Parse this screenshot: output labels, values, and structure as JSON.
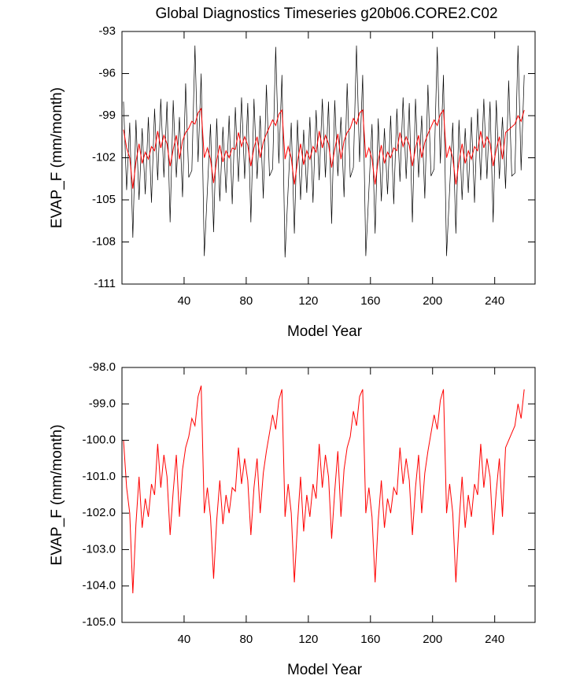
{
  "chart_data": [
    {
      "type": "line",
      "title": "Global Diagnostics Timeseries g20b06.CORE2.C02",
      "xlabel": "Model Year",
      "ylabel": "EVAP_F (mm/month)",
      "xlim": [
        0,
        266
      ],
      "xticks": [
        40,
        80,
        120,
        160,
        200,
        240
      ],
      "ylim": [
        -111,
        -93
      ],
      "yticks": [
        -111,
        -108,
        -105,
        -102,
        -99,
        -96,
        -93
      ],
      "x": [
        1,
        3,
        5,
        7,
        9,
        11,
        13,
        15,
        17,
        19,
        21,
        23,
        25,
        27,
        29,
        31,
        33,
        35,
        37,
        39,
        41,
        43,
        45,
        47,
        49,
        51,
        53,
        55,
        57,
        59,
        61,
        63,
        65,
        67,
        69,
        71,
        73,
        75,
        77,
        79,
        81,
        83,
        85,
        87,
        89,
        91,
        93,
        95,
        97,
        99,
        101,
        103,
        105,
        107,
        109,
        111,
        113,
        115,
        117,
        119,
        121,
        123,
        125,
        127,
        129,
        131,
        133,
        135,
        137,
        139,
        141,
        143,
        145,
        147,
        149,
        151,
        153,
        155,
        157,
        159,
        161,
        163,
        165,
        167,
        169,
        171,
        173,
        175,
        177,
        179,
        181,
        183,
        185,
        187,
        189,
        191,
        193,
        195,
        197,
        199,
        201,
        203,
        205,
        207,
        209,
        211,
        213,
        215,
        217,
        219,
        221,
        223,
        225,
        227,
        229,
        231,
        233,
        235,
        237,
        239,
        241,
        243,
        245,
        247,
        249,
        251,
        253,
        255,
        257,
        259
      ],
      "series": [
        {
          "color": "#000000",
          "values": [
            -98.0,
            -104.3,
            -99.5,
            -107.7,
            -99.3,
            -105.0,
            -99.9,
            -104.6,
            -99.1,
            -105.2,
            -98.5,
            -103.6,
            -97.8,
            -103.4,
            -98.0,
            -106.6,
            -97.9,
            -103.4,
            -99.1,
            -104.8,
            -96.7,
            -103.4,
            -102.9,
            -94.0,
            -102.3,
            -96.0,
            -109.0,
            -104.3,
            -99.6,
            -107.3,
            -99.2,
            -105.1,
            -99.8,
            -104.5,
            -99.0,
            -105.3,
            -98.4,
            -103.7,
            -97.7,
            -103.5,
            -98.1,
            -106.6,
            -97.8,
            -103.5,
            -99.0,
            -104.9,
            -96.8,
            -103.3,
            -102.8,
            -94.1,
            -102.4,
            -96.1,
            -109.1,
            -104.2,
            -99.5,
            -107.4,
            -99.3,
            -105.0,
            -100.0,
            -104.5,
            -99.1,
            -105.2,
            -98.6,
            -103.6,
            -97.8,
            -103.4,
            -98.0,
            -106.7,
            -97.9,
            -103.3,
            -99.1,
            -104.8,
            -96.7,
            -103.4,
            -102.7,
            -94.0,
            -102.3,
            -96.1,
            -109.0,
            -104.3,
            -99.6,
            -107.4,
            -99.2,
            -105.1,
            -99.9,
            -104.6,
            -99.0,
            -105.3,
            -98.5,
            -103.7,
            -97.7,
            -103.5,
            -98.1,
            -106.6,
            -97.8,
            -103.4,
            -99.0,
            -104.9,
            -96.8,
            -103.3,
            -102.8,
            -94.1,
            -102.4,
            -96.1,
            -109.0,
            -104.2,
            -99.5,
            -107.4,
            -99.3,
            -105.0,
            -99.9,
            -104.5,
            -99.1,
            -105.2,
            -98.5,
            -103.6,
            -97.8,
            -103.5,
            -98.0,
            -106.6,
            -97.9,
            -103.5,
            -99.1,
            -104.2,
            -96.5,
            -103.3,
            -103.1,
            -94.0,
            -102.9,
            -96.1
          ]
        },
        {
          "color": "#ff0000",
          "values": [
            -100.0,
            -101.3,
            -102.0,
            -104.2,
            -102.3,
            -101.0,
            -102.4,
            -101.6,
            -102.1,
            -101.2,
            -101.5,
            -100.1,
            -101.3,
            -100.4,
            -101.0,
            -102.6,
            -101.4,
            -100.4,
            -102.1,
            -100.8,
            -100.2,
            -99.9,
            -99.4,
            -99.6,
            -98.8,
            -98.5,
            -102.0,
            -101.3,
            -102.1,
            -103.8,
            -102.2,
            -101.1,
            -102.3,
            -101.5,
            -102.0,
            -101.3,
            -101.4,
            -100.2,
            -101.2,
            -100.5,
            -101.1,
            -102.6,
            -101.3,
            -100.5,
            -102.0,
            -100.9,
            -100.3,
            -99.8,
            -99.3,
            -99.7,
            -98.9,
            -98.6,
            -102.1,
            -101.2,
            -102.0,
            -103.9,
            -102.3,
            -101.0,
            -102.5,
            -101.5,
            -102.1,
            -101.2,
            -101.6,
            -100.1,
            -101.3,
            -100.4,
            -101.0,
            -102.7,
            -101.4,
            -100.3,
            -102.1,
            -100.8,
            -100.2,
            -99.9,
            -99.2,
            -99.6,
            -98.8,
            -98.6,
            -102.0,
            -101.3,
            -102.1,
            -103.9,
            -102.2,
            -101.1,
            -102.4,
            -101.6,
            -102.0,
            -101.3,
            -101.5,
            -100.2,
            -101.2,
            -100.5,
            -101.1,
            -102.6,
            -101.3,
            -100.4,
            -102.0,
            -100.9,
            -100.3,
            -99.8,
            -99.3,
            -99.7,
            -98.9,
            -98.6,
            -102.0,
            -101.2,
            -102.0,
            -103.9,
            -102.3,
            -101.0,
            -102.4,
            -101.5,
            -102.1,
            -101.2,
            -101.5,
            -100.1,
            -101.3,
            -100.5,
            -101.0,
            -102.6,
            -101.4,
            -100.5,
            -102.1,
            -100.2,
            -100.0,
            -99.8,
            -99.6,
            -99.0,
            -99.4,
            -98.6
          ]
        }
      ]
    },
    {
      "type": "line",
      "xlabel": "Model Year",
      "ylabel": "EVAP_F (mm/month)",
      "xlim": [
        0,
        266
      ],
      "xticks": [
        40,
        80,
        120,
        160,
        200,
        240
      ],
      "ylim": [
        -105,
        -98
      ],
      "yticks": [
        {
          "value": -105,
          "label": "-105.0"
        },
        {
          "value": -104,
          "label": "-104.0"
        },
        {
          "value": -103,
          "label": "-103.0"
        },
        {
          "value": -102,
          "label": "-102.0"
        },
        {
          "value": -101,
          "label": "-101.0"
        },
        {
          "value": -100,
          "label": "-100.0"
        },
        {
          "value": -99,
          "label": "-99.0"
        },
        {
          "value": -98,
          "label": "-98.0"
        }
      ],
      "x": [
        1,
        3,
        5,
        7,
        9,
        11,
        13,
        15,
        17,
        19,
        21,
        23,
        25,
        27,
        29,
        31,
        33,
        35,
        37,
        39,
        41,
        43,
        45,
        47,
        49,
        51,
        53,
        55,
        57,
        59,
        61,
        63,
        65,
        67,
        69,
        71,
        73,
        75,
        77,
        79,
        81,
        83,
        85,
        87,
        89,
        91,
        93,
        95,
        97,
        99,
        101,
        103,
        105,
        107,
        109,
        111,
        113,
        115,
        117,
        119,
        121,
        123,
        125,
        127,
        129,
        131,
        133,
        135,
        137,
        139,
        141,
        143,
        145,
        147,
        149,
        151,
        153,
        155,
        157,
        159,
        161,
        163,
        165,
        167,
        169,
        171,
        173,
        175,
        177,
        179,
        181,
        183,
        185,
        187,
        189,
        191,
        193,
        195,
        197,
        199,
        201,
        203,
        205,
        207,
        209,
        211,
        213,
        215,
        217,
        219,
        221,
        223,
        225,
        227,
        229,
        231,
        233,
        235,
        237,
        239,
        241,
        243,
        245,
        247,
        249,
        251,
        253,
        255,
        257,
        259
      ],
      "series": [
        {
          "color": "#ff0000",
          "values": [
            -100.0,
            -101.3,
            -102.0,
            -104.2,
            -102.3,
            -101.0,
            -102.4,
            -101.6,
            -102.1,
            -101.2,
            -101.5,
            -100.1,
            -101.3,
            -100.4,
            -101.0,
            -102.6,
            -101.4,
            -100.4,
            -102.1,
            -100.8,
            -100.2,
            -99.9,
            -99.4,
            -99.6,
            -98.8,
            -98.5,
            -102.0,
            -101.3,
            -102.1,
            -103.8,
            -102.2,
            -101.1,
            -102.3,
            -101.5,
            -102.0,
            -101.3,
            -101.4,
            -100.2,
            -101.2,
            -100.5,
            -101.1,
            -102.6,
            -101.3,
            -100.5,
            -102.0,
            -100.9,
            -100.3,
            -99.8,
            -99.3,
            -99.7,
            -98.9,
            -98.6,
            -102.1,
            -101.2,
            -102.0,
            -103.9,
            -102.3,
            -101.0,
            -102.5,
            -101.5,
            -102.1,
            -101.2,
            -101.6,
            -100.1,
            -101.3,
            -100.4,
            -101.0,
            -102.7,
            -101.4,
            -100.3,
            -102.1,
            -100.8,
            -100.2,
            -99.9,
            -99.2,
            -99.6,
            -98.8,
            -98.6,
            -102.0,
            -101.3,
            -102.1,
            -103.9,
            -102.2,
            -101.1,
            -102.4,
            -101.6,
            -102.0,
            -101.3,
            -101.5,
            -100.2,
            -101.2,
            -100.5,
            -101.1,
            -102.6,
            -101.3,
            -100.4,
            -102.0,
            -100.9,
            -100.3,
            -99.8,
            -99.3,
            -99.7,
            -98.9,
            -98.6,
            -102.0,
            -101.2,
            -102.0,
            -103.9,
            -102.3,
            -101.0,
            -102.4,
            -101.5,
            -102.1,
            -101.2,
            -101.5,
            -100.1,
            -101.3,
            -100.5,
            -101.0,
            -102.6,
            -101.4,
            -100.5,
            -102.1,
            -100.2,
            -100.0,
            -99.8,
            -99.6,
            -99.0,
            -99.4,
            -98.6
          ]
        }
      ]
    }
  ]
}
